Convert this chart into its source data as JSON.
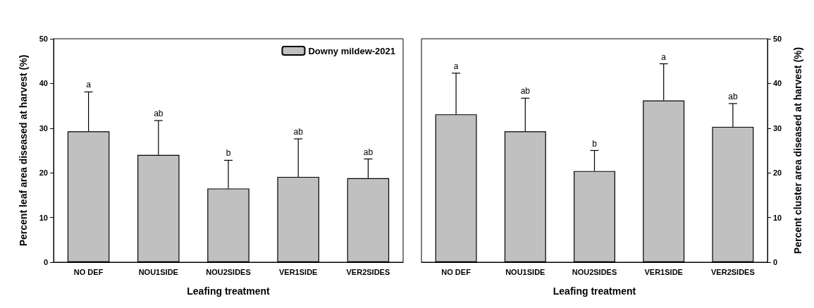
{
  "chart_data": [
    {
      "type": "bar",
      "xlabel": "Leafing treatment",
      "ylabel": "Percent leaf area diseased at harvest (%)",
      "categories": [
        "NO DEF",
        "NOU1SIDE",
        "NOU2SIDES",
        "VER1SIDE",
        "VER2SIDES"
      ],
      "series": [
        {
          "name": "Downy mildew-2021",
          "color": "#c0c0c0",
          "values": [
            29.3,
            24.0,
            16.5,
            19.1,
            18.8
          ],
          "errors": [
            [
              29.3,
              38.1
            ],
            [
              24.0,
              31.7
            ],
            [
              16.5,
              22.8
            ],
            [
              19.1,
              27.6
            ],
            [
              18.8,
              23.1
            ]
          ]
        }
      ],
      "ylim": [
        0,
        50
      ],
      "yticks": [
        0,
        10,
        20,
        30,
        40,
        50
      ],
      "legend": "top right",
      "grid": false,
      "annotations": [
        {
          "text": "a",
          "x": "NO DEF",
          "y": 38.1
        },
        {
          "text": "ab",
          "x": "NOU1SIDE",
          "y": 31.7
        },
        {
          "text": "b",
          "x": "NOU2SIDES",
          "y": 22.8
        },
        {
          "text": "ab",
          "x": "VER1SIDE",
          "y": 27.6
        },
        {
          "text": "ab",
          "x": "VER2SIDES",
          "y": 23.1
        }
      ]
    },
    {
      "type": "bar",
      "xlabel": "Leafing treatment",
      "y2label": "Percent cluster area diseased at harvest (%)",
      "categories": [
        "NO DEF",
        "NOU1SIDE",
        "NOU2SIDES",
        "VER1SIDE",
        "VER2SIDES"
      ],
      "series": [
        {
          "color": "#c0c0c0",
          "axis": "y2",
          "values": [
            33.1,
            29.3,
            20.4,
            36.2,
            30.3
          ],
          "errors": [
            [
              33.1,
              42.3
            ],
            [
              29.3,
              36.7
            ],
            [
              20.4,
              25.0
            ],
            [
              36.2,
              44.4
            ],
            [
              30.3,
              35.5
            ]
          ]
        }
      ],
      "y2lim": [
        0,
        50
      ],
      "y2ticks": [
        0,
        10,
        20,
        30,
        40,
        50
      ],
      "grid": false,
      "annotations": [
        "a",
        "ab",
        "b",
        "a",
        "ab"
      ]
    }
  ]
}
